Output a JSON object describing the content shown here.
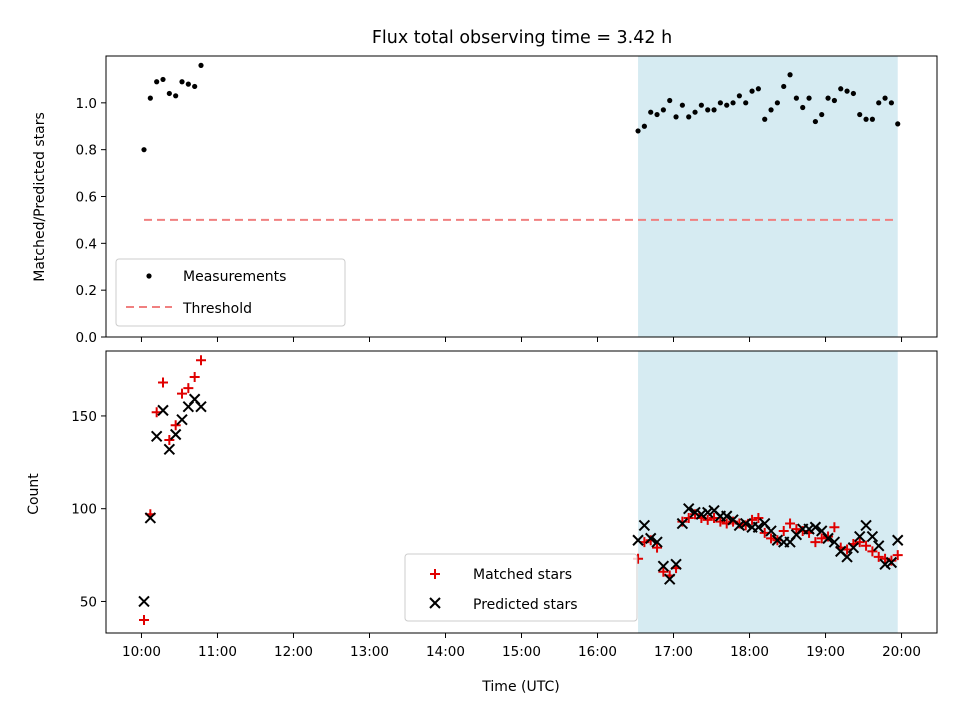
{
  "colors": {
    "measurement": "#000000",
    "threshold": "#f08080",
    "matched": "#e00000",
    "predicted": "#000000",
    "observing_window": "#add8e6"
  },
  "chart_data": [
    {
      "type": "scatter",
      "title": "Flux total observing time = 3.42 h",
      "ylabel": "Matched/Predicted stars",
      "xlabel": "",
      "xlim": [
        "09:32",
        "20:28"
      ],
      "ylim": [
        0,
        1.2
      ],
      "yticks": [
        "0.0",
        "0.2",
        "0.4",
        "0.6",
        "0.8",
        "1.0"
      ],
      "ytick_values": [
        0,
        0.2,
        0.4,
        0.6,
        0.8,
        1.0
      ],
      "grid": false,
      "legend_position": "lower-left",
      "shaded_span": [
        "16:32",
        "19:57"
      ],
      "series": [
        {
          "name": "Measurements",
          "marker": "dot",
          "x": [
            "10:02",
            "10:07",
            "10:12",
            "10:17",
            "10:22",
            "10:27",
            "10:32",
            "10:37",
            "10:42",
            "10:47",
            "16:32",
            "16:37",
            "16:42",
            "16:47",
            "16:52",
            "16:57",
            "17:02",
            "17:07",
            "17:12",
            "17:17",
            "17:22",
            "17:27",
            "17:32",
            "17:37",
            "17:42",
            "17:47",
            "17:52",
            "17:57",
            "18:02",
            "18:07",
            "18:12",
            "18:17",
            "18:22",
            "18:27",
            "18:32",
            "18:37",
            "18:42",
            "18:47",
            "18:52",
            "18:57",
            "19:02",
            "19:07",
            "19:12",
            "19:17",
            "19:22",
            "19:27",
            "19:32",
            "19:37",
            "19:42",
            "19:47",
            "19:52",
            "19:57"
          ],
          "y": [
            0.8,
            1.02,
            1.09,
            1.1,
            1.04,
            1.03,
            1.09,
            1.08,
            1.07,
            1.16,
            0.88,
            0.9,
            0.96,
            0.95,
            0.97,
            1.01,
            0.94,
            0.99,
            0.94,
            0.96,
            0.99,
            0.97,
            0.97,
            1.0,
            0.99,
            1.0,
            1.03,
            1.0,
            1.05,
            1.06,
            0.93,
            0.97,
            1.0,
            1.07,
            1.12,
            1.02,
            0.98,
            1.02,
            0.92,
            0.95,
            1.02,
            1.01,
            1.06,
            1.05,
            1.04,
            0.95,
            0.93,
            0.93,
            1.0,
            1.02,
            1.0,
            0.91
          ]
        },
        {
          "name": "Threshold",
          "marker": "dashed-line",
          "x": [
            "10:02",
            "19:57"
          ],
          "y": [
            0.5,
            0.5
          ]
        }
      ]
    },
    {
      "type": "scatter",
      "title": "",
      "ylabel": "Count",
      "xlabel": "Time (UTC)",
      "xlim": [
        "09:32",
        "20:28"
      ],
      "ylim": [
        33,
        185
      ],
      "xticks": [
        "10:00",
        "11:00",
        "12:00",
        "13:00",
        "14:00",
        "15:00",
        "16:00",
        "17:00",
        "18:00",
        "19:00",
        "20:00"
      ],
      "yticks": [
        "50",
        "100",
        "150"
      ],
      "ytick_values": [
        50,
        100,
        150
      ],
      "grid": false,
      "legend_position": "lower-center",
      "shaded_span": [
        "16:32",
        "19:57"
      ],
      "series": [
        {
          "name": "Matched stars",
          "marker": "plus",
          "x": [
            "10:02",
            "10:07",
            "10:12",
            "10:17",
            "10:22",
            "10:27",
            "10:32",
            "10:37",
            "10:42",
            "10:47",
            "16:32",
            "16:37",
            "16:42",
            "16:47",
            "16:52",
            "16:57",
            "17:02",
            "17:07",
            "17:12",
            "17:17",
            "17:22",
            "17:27",
            "17:32",
            "17:37",
            "17:42",
            "17:47",
            "17:52",
            "17:57",
            "18:02",
            "18:07",
            "18:12",
            "18:17",
            "18:22",
            "18:27",
            "18:32",
            "18:37",
            "18:42",
            "18:47",
            "18:52",
            "18:57",
            "19:02",
            "19:07",
            "19:12",
            "19:17",
            "19:22",
            "19:27",
            "19:32",
            "19:37",
            "19:42",
            "19:47",
            "19:52",
            "19:57"
          ],
          "y": [
            40,
            97,
            152,
            168,
            137,
            145,
            162,
            165,
            171,
            180,
            73,
            82,
            83,
            79,
            66,
            64,
            68,
            93,
            95,
            97,
            95,
            94,
            95,
            93,
            92,
            93,
            92,
            91,
            94,
            95,
            87,
            84,
            83,
            88,
            92,
            89,
            88,
            87,
            82,
            84,
            85,
            90,
            79,
            78,
            81,
            82,
            80,
            77,
            74,
            73,
            72,
            75
          ]
        },
        {
          "name": "Predicted stars",
          "marker": "x",
          "x": [
            "10:02",
            "10:07",
            "10:12",
            "10:17",
            "10:22",
            "10:27",
            "10:32",
            "10:37",
            "10:42",
            "10:47",
            "16:32",
            "16:37",
            "16:42",
            "16:47",
            "16:52",
            "16:57",
            "17:02",
            "17:07",
            "17:12",
            "17:17",
            "17:22",
            "17:27",
            "17:32",
            "17:37",
            "17:42",
            "17:47",
            "17:52",
            "17:57",
            "18:02",
            "18:07",
            "18:12",
            "18:17",
            "18:22",
            "18:27",
            "18:32",
            "18:37",
            "18:42",
            "18:47",
            "18:52",
            "18:57",
            "19:02",
            "19:07",
            "19:12",
            "19:17",
            "19:22",
            "19:27",
            "19:32",
            "19:37",
            "19:42",
            "19:47",
            "19:52",
            "19:57"
          ],
          "y": [
            50,
            95,
            139,
            153,
            132,
            140,
            148,
            155,
            159,
            155,
            83,
            91,
            84,
            82,
            69,
            62,
            70,
            92,
            100,
            98,
            97,
            98,
            99,
            96,
            96,
            94,
            91,
            92,
            90,
            90,
            92,
            88,
            83,
            82,
            82,
            86,
            89,
            89,
            90,
            88,
            84,
            82,
            77,
            74,
            79,
            85,
            91,
            85,
            80,
            70,
            71,
            83
          ]
        }
      ]
    }
  ]
}
